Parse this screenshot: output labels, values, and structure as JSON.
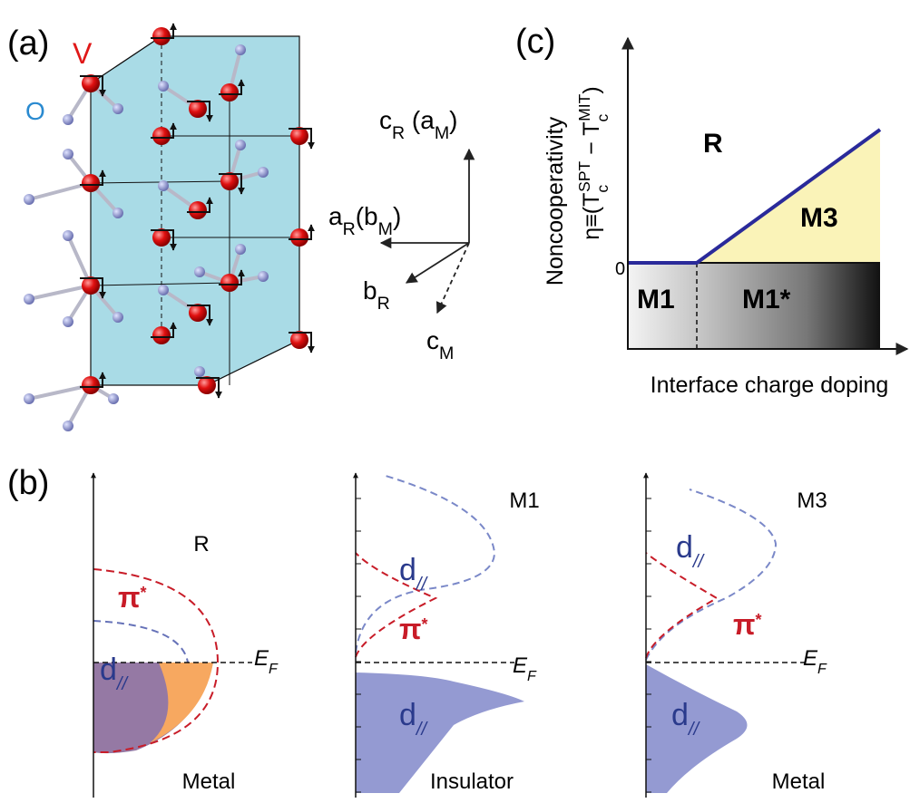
{
  "panel_a": {
    "label": "(a)",
    "atom_v": "V",
    "atom_o": "O",
    "axis_c_r": {
      "base": "c",
      "sub": "R",
      "paren": " (a",
      "paren_sub": "M",
      "close": ")"
    },
    "axis_a_r": {
      "base": "a",
      "sub": "R",
      "paren": "(b",
      "paren_sub": "M",
      "close": ")"
    },
    "axis_b_r": {
      "base": "b",
      "sub": "R"
    },
    "axis_c_m": {
      "base": "c",
      "sub": "M"
    }
  },
  "panel_b": {
    "label": "(b)",
    "subpanels": [
      {
        "title": "R",
        "state": "Metal",
        "pi": {
          "base": "π",
          "sup": "*"
        },
        "fermi": {
          "base": "E",
          "sub": "F"
        },
        "d_labels": [
          {
            "base": "d",
            "sub": "//"
          }
        ]
      },
      {
        "title": "M1",
        "state": "Insulator",
        "pi": {
          "base": "π",
          "sup": "*"
        },
        "fermi": {
          "base": "E",
          "sub": "F"
        },
        "d_labels": [
          {
            "base": "d",
            "sub": "//"
          },
          {
            "base": "d",
            "sub": "//"
          }
        ]
      },
      {
        "title": "M3",
        "state": "Metal",
        "pi": {
          "base": "π",
          "sup": "*"
        },
        "fermi": {
          "base": "E",
          "sub": "F"
        },
        "d_labels": [
          {
            "base": "d",
            "sub": "//"
          },
          {
            "base": "d",
            "sub": "//"
          }
        ]
      }
    ]
  },
  "panel_c": {
    "label": "(c)",
    "y_label": "Noncooperativity",
    "eta": {
      "base": "η≡(T",
      "sub1": "c",
      "sup1": "SPT",
      "mid": " − T",
      "sub2": "c",
      "sup2": "MIT",
      "close": ")"
    },
    "zero": "0",
    "phase_r": "R",
    "phase_m3": "M3",
    "phase_m1": "M1",
    "phase_m1_star": "M1*",
    "x_label": "Interface charge doping"
  }
}
